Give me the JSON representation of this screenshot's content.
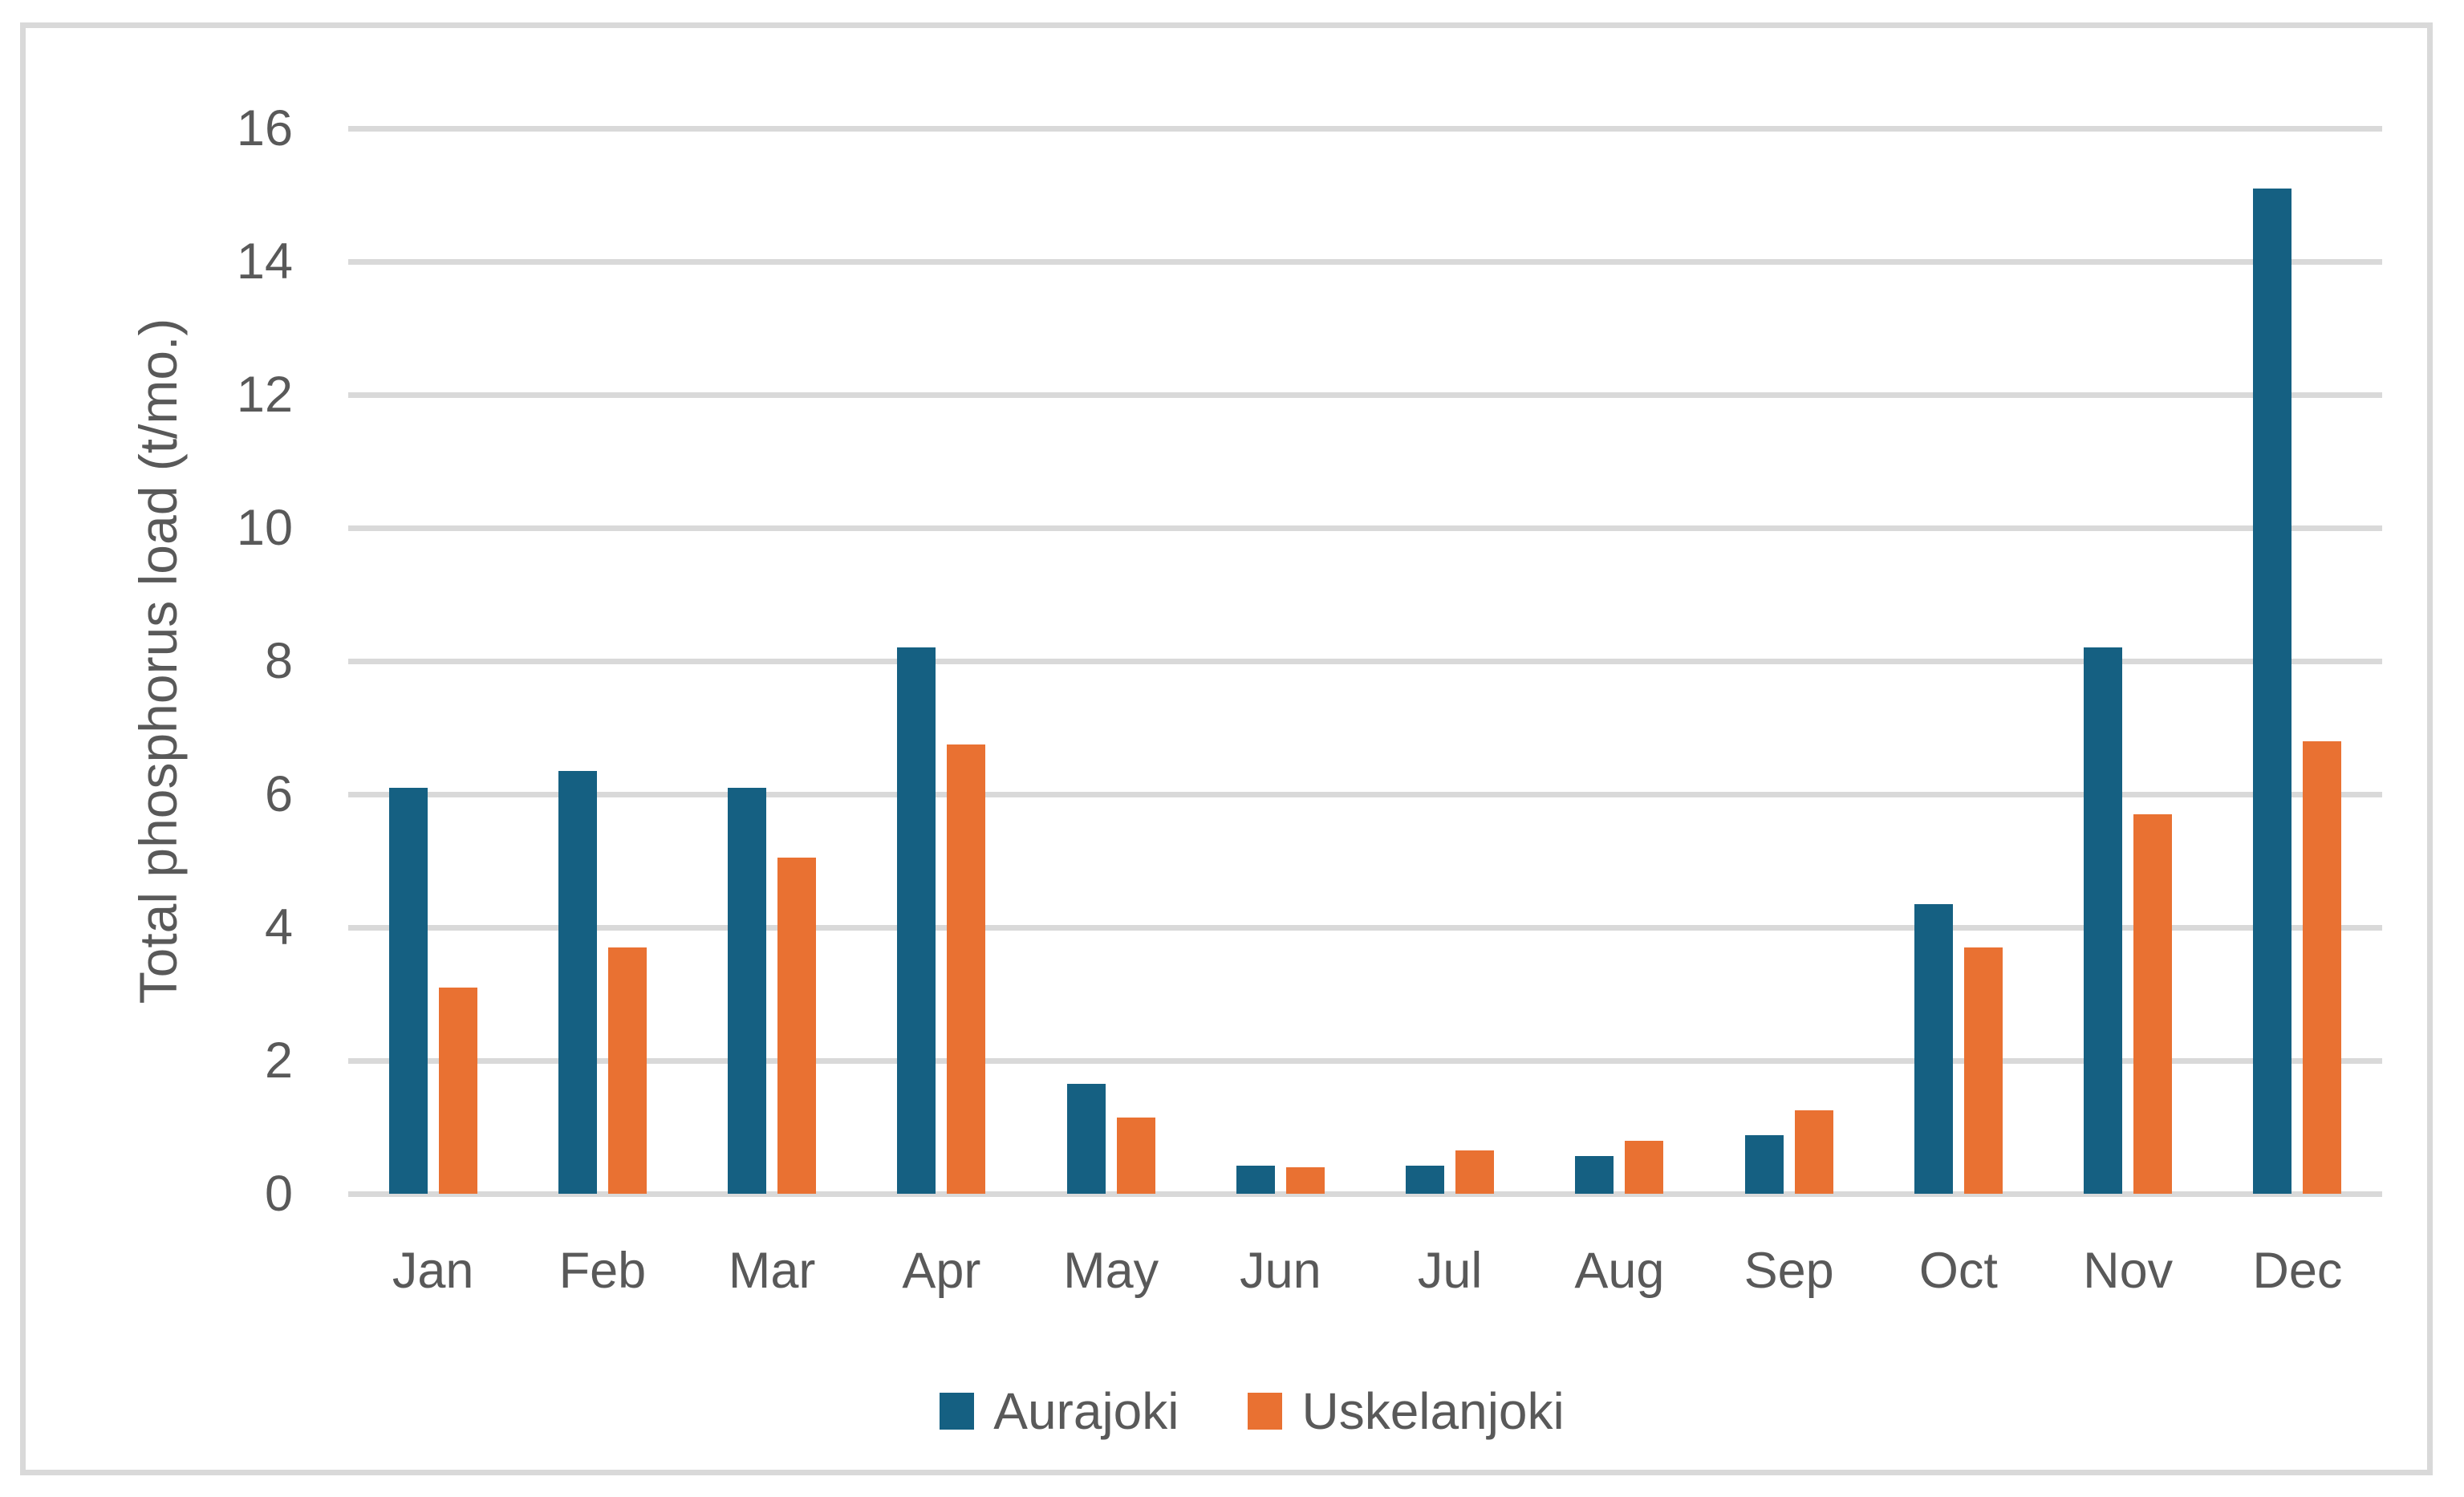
{
  "chart_data": {
    "type": "bar",
    "title": "",
    "xlabel": "",
    "ylabel": "Total phosphorus load (t/mo.)",
    "categories": [
      "Jan",
      "Feb",
      "Mar",
      "Apr",
      "May",
      "Jun",
      "Jul",
      "Aug",
      "Sep",
      "Oct",
      "Nov",
      "Dec"
    ],
    "series": [
      {
        "name": "Aurajoki",
        "color": "#156082",
        "values": [
          6.1,
          6.35,
          6.1,
          8.2,
          1.65,
          0.42,
          0.42,
          0.57,
          0.88,
          4.35,
          8.2,
          15.1
        ]
      },
      {
        "name": "Uskelanjoki",
        "color": "#E97132",
        "values": [
          3.1,
          3.7,
          5.05,
          6.75,
          1.15,
          0.4,
          0.65,
          0.8,
          1.25,
          3.7,
          5.7,
          6.8
        ]
      }
    ],
    "ylim": [
      0,
      16
    ],
    "yticks": [
      0,
      2,
      4,
      6,
      8,
      10,
      12,
      14,
      16
    ],
    "grid": true,
    "legend_position": "bottom"
  },
  "colors": {
    "gridline": "#D9D9D9",
    "axis_text": "#595959",
    "frame_border": "#D9D9D9",
    "background": "#FFFFFF"
  }
}
